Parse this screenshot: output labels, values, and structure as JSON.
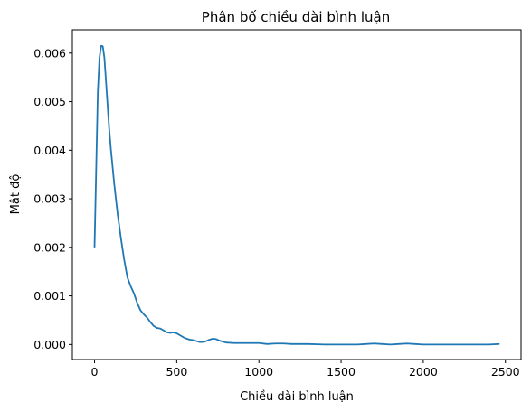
{
  "chart_data": {
    "type": "line",
    "title": "Phân bố chiều dài bình luận",
    "xlabel": "Chiều dài bình luận",
    "ylabel": "Mật độ",
    "xlim": [
      -135,
      2595
    ],
    "ylim": [
      -0.00031,
      0.00648
    ],
    "xticks": [
      0,
      500,
      1000,
      1500,
      2000,
      2500
    ],
    "yticks": [
      0.0,
      0.001,
      0.002,
      0.003,
      0.004,
      0.005,
      0.006
    ],
    "xtick_labels": [
      "0",
      "500",
      "1000",
      "1500",
      "2000",
      "2500"
    ],
    "ytick_labels": [
      "0.000",
      "0.001",
      "0.002",
      "0.003",
      "0.004",
      "0.005",
      "0.006"
    ],
    "grid": false,
    "series": [
      {
        "color": "#1f77b4",
        "x": [
          0,
          10,
          20,
          30,
          40,
          50,
          60,
          70,
          80,
          90,
          100,
          120,
          140,
          160,
          180,
          200,
          220,
          240,
          260,
          280,
          300,
          320,
          340,
          360,
          380,
          400,
          420,
          440,
          460,
          480,
          500,
          520,
          540,
          560,
          580,
          600,
          620,
          640,
          660,
          680,
          700,
          720,
          740,
          760,
          780,
          800,
          850,
          900,
          950,
          1000,
          1050,
          1100,
          1150,
          1200,
          1300,
          1400,
          1500,
          1600,
          1650,
          1700,
          1750,
          1800,
          1850,
          1900,
          1950,
          2000,
          2100,
          2200,
          2300,
          2400,
          2460
        ],
        "y": [
          0.00201,
          0.0036,
          0.0052,
          0.0059,
          0.00615,
          0.00614,
          0.0059,
          0.0054,
          0.0049,
          0.0044,
          0.004,
          0.0033,
          0.0027,
          0.0022,
          0.00175,
          0.00138,
          0.0012,
          0.00105,
          0.00085,
          0.0007,
          0.00062,
          0.00055,
          0.00046,
          0.00038,
          0.00034,
          0.00033,
          0.00029,
          0.00025,
          0.00024,
          0.00025,
          0.00023,
          0.00019,
          0.00015,
          0.00012,
          0.0001,
          9e-05,
          7e-05,
          5e-05,
          5e-05,
          7e-05,
          0.0001,
          0.00012,
          0.00011,
          8e-05,
          6e-05,
          4e-05,
          3e-05,
          3e-05,
          3e-05,
          3e-05,
          1e-05,
          2e-05,
          2e-05,
          1e-05,
          1e-05,
          0.0,
          0.0,
          0.0,
          1e-05,
          2e-05,
          1e-05,
          0.0,
          1e-05,
          2e-05,
          1e-05,
          0.0,
          0.0,
          0.0,
          0.0,
          0.0,
          1e-05
        ]
      }
    ]
  }
}
